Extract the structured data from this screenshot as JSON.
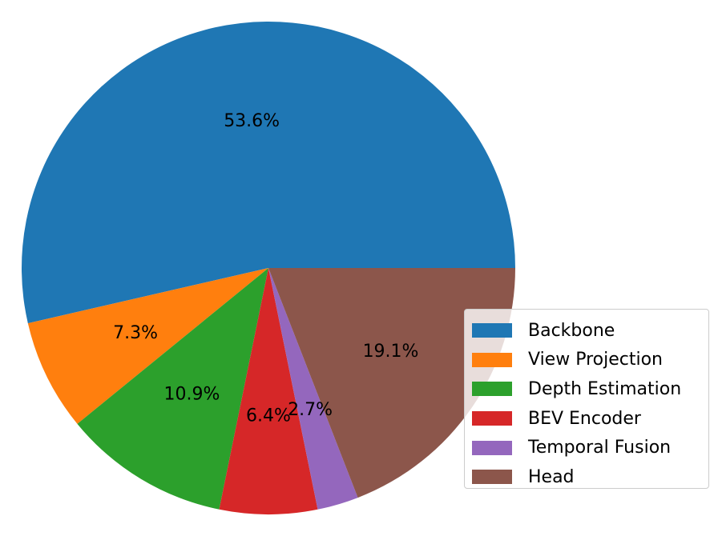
{
  "chart_data": {
    "type": "pie",
    "slices": [
      {
        "label": "Backbone",
        "value": 53.6,
        "label_text": "53.6%",
        "color": "#1f77b4"
      },
      {
        "label": "View Projection",
        "value": 7.3,
        "label_text": "7.3%",
        "color": "#ff7f0e"
      },
      {
        "label": "Depth Estimation",
        "value": 10.9,
        "label_text": "10.9%",
        "color": "#2ca02c"
      },
      {
        "label": "BEV Encoder",
        "value": 6.4,
        "label_text": "6.4%",
        "color": "#d62728"
      },
      {
        "label": "Temporal Fusion",
        "value": 2.7,
        "label_text": "2.7%",
        "color": "#9467bd"
      },
      {
        "label": "Head",
        "value": 19.1,
        "label_text": "19.1%",
        "color": "#8c564b"
      }
    ],
    "start_angle_deg": 0,
    "direction": "counterclockwise",
    "legend_position": "lower-right"
  }
}
